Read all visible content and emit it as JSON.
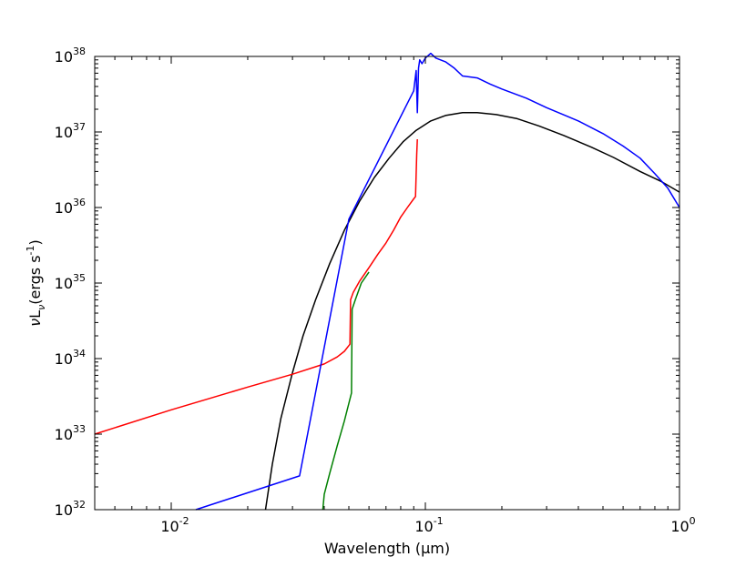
{
  "chart_data": {
    "type": "line",
    "xlabel": "Wavelength (μm)",
    "ylabel": {
      "nu": "ν",
      "L": "L",
      "sub": "ν",
      "unit": "(ergs s",
      "exp": "-1",
      "close": ")"
    },
    "x_scale": "log",
    "y_scale": "log",
    "xlim": [
      0.005,
      1.0
    ],
    "ylim": [
      1e+32,
      1e+38
    ],
    "x_tick_labels": [
      {
        "value": 0.01,
        "base": "10",
        "exp": "-2"
      },
      {
        "value": 0.1,
        "base": "10",
        "exp": "-1"
      },
      {
        "value": 1.0,
        "base": "10",
        "exp": "0"
      }
    ],
    "y_tick_labels": [
      {
        "value": 1e+32,
        "base": "10",
        "exp": "32"
      },
      {
        "value": 1e+33,
        "base": "10",
        "exp": "33"
      },
      {
        "value": 1e+34,
        "base": "10",
        "exp": "34"
      },
      {
        "value": 1e+35,
        "base": "10",
        "exp": "35"
      },
      {
        "value": 1e+36,
        "base": "10",
        "exp": "36"
      },
      {
        "value": 1e+37,
        "base": "10",
        "exp": "37"
      },
      {
        "value": 1e+38,
        "base": "10",
        "exp": "38"
      }
    ],
    "grid": false,
    "series": [
      {
        "color": "#000000",
        "points": [
          [
            0.0235,
            1e+32
          ],
          [
            0.025,
            4e+32
          ],
          [
            0.027,
            1.6e+33
          ],
          [
            0.03,
            6.5e+33
          ],
          [
            0.033,
            2e+34
          ],
          [
            0.037,
            6e+34
          ],
          [
            0.042,
            1.8e+35
          ],
          [
            0.048,
            5e+35
          ],
          [
            0.055,
            1.2e+36
          ],
          [
            0.063,
            2.5e+36
          ],
          [
            0.072,
            4.5e+36
          ],
          [
            0.082,
            7.5e+36
          ],
          [
            0.092,
            1.05e+37
          ],
          [
            0.105,
            1.4e+37
          ],
          [
            0.12,
            1.65e+37
          ],
          [
            0.14,
            1.8e+37
          ],
          [
            0.16,
            1.8e+37
          ],
          [
            0.19,
            1.7e+37
          ],
          [
            0.23,
            1.5e+37
          ],
          [
            0.28,
            1.2e+37
          ],
          [
            0.35,
            9e+36
          ],
          [
            0.45,
            6.3e+36
          ],
          [
            0.55,
            4.6e+36
          ],
          [
            0.7,
            3e+36
          ],
          [
            0.85,
            2.2e+36
          ],
          [
            1.0,
            1.6e+36
          ]
        ]
      },
      {
        "color": "#ff0000",
        "points": [
          [
            0.005,
            1e+33
          ],
          [
            0.01,
            2.1e+33
          ],
          [
            0.02,
            4.2e+33
          ],
          [
            0.03,
            6.2e+33
          ],
          [
            0.04,
            8.5e+33
          ],
          [
            0.045,
            1.05e+34
          ],
          [
            0.048,
            1.25e+34
          ],
          [
            0.0505,
            1.55e+34
          ],
          [
            0.0508,
            6e+34
          ],
          [
            0.052,
            7.5e+34
          ],
          [
            0.055,
            1.05e+35
          ],
          [
            0.06,
            1.6e+35
          ],
          [
            0.065,
            2.4e+35
          ],
          [
            0.07,
            3.4e+35
          ],
          [
            0.075,
            5e+35
          ],
          [
            0.08,
            7.5e+35
          ],
          [
            0.085,
            1e+36
          ],
          [
            0.09,
            1.3e+36
          ],
          [
            0.0915,
            1.4e+36
          ],
          [
            0.0925,
            5e+36
          ],
          [
            0.093,
            8e+36
          ]
        ]
      },
      {
        "color": "#008000",
        "points": [
          [
            0.0395,
            1e+32
          ],
          [
            0.04,
            1.6e+32
          ],
          [
            0.042,
            3e+32
          ],
          [
            0.045,
            7e+32
          ],
          [
            0.048,
            1.5e+33
          ],
          [
            0.0512,
            3.5e+33
          ],
          [
            0.0515,
            4.5e+34
          ],
          [
            0.053,
            6e+34
          ],
          [
            0.056,
            1e+35
          ],
          [
            0.06,
            1.4e+35
          ]
        ]
      },
      {
        "color": "#0000ff",
        "points": [
          [
            0.0125,
            1e+32
          ],
          [
            0.032,
            2.8e+32
          ],
          [
            0.05,
            7e+35
          ],
          [
            0.09,
            3.5e+37
          ],
          [
            0.092,
            6.5e+37
          ],
          [
            0.093,
            1.8e+37
          ],
          [
            0.094,
            7e+37
          ],
          [
            0.095,
            9e+37
          ],
          [
            0.097,
            8e+37
          ],
          [
            0.1,
            9.5e+37
          ],
          [
            0.105,
            1.1e+38
          ],
          [
            0.11,
            9.5e+37
          ],
          [
            0.12,
            8.5e+37
          ],
          [
            0.13,
            7e+37
          ],
          [
            0.14,
            5.5e+37
          ],
          [
            0.16,
            5.2e+37
          ],
          [
            0.18,
            4.3e+37
          ],
          [
            0.2,
            3.7e+37
          ],
          [
            0.25,
            2.8e+37
          ],
          [
            0.3,
            2.1e+37
          ],
          [
            0.4,
            1.4e+37
          ],
          [
            0.5,
            9.5e+36
          ],
          [
            0.6,
            6.5e+36
          ],
          [
            0.7,
            4.5e+36
          ],
          [
            0.8,
            2.8e+36
          ],
          [
            0.9,
            1.8e+36
          ],
          [
            1.0,
            1e+36
          ]
        ]
      }
    ]
  }
}
